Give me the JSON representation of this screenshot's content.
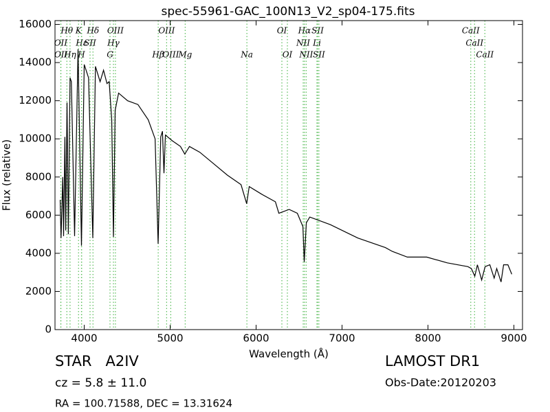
{
  "chart_data": {
    "type": "line",
    "title": "spec-55961-GAC_100N13_V2_sp04-175.fits",
    "x_label": "Wavelength (Å)",
    "y_label": "Flux (relative)",
    "xlim": [
      3660,
      9100
    ],
    "ylim": [
      0,
      16200
    ],
    "xticks": [
      4000,
      5000,
      6000,
      7000,
      8000,
      9000
    ],
    "yticks": [
      0,
      2000,
      4000,
      6000,
      8000,
      10000,
      12000,
      14000,
      16000
    ],
    "color": "#000000",
    "line_color": "#55bb55",
    "x": [
      3720,
      3730,
      3750,
      3760,
      3775,
      3785,
      3800,
      3815,
      3835,
      3850,
      3888,
      3928,
      3968,
      4000,
      4050,
      4100,
      4130,
      4185,
      4225,
      4265,
      4290,
      4320,
      4340,
      4360,
      4400,
      4505,
      4625,
      4745,
      4825,
      4860,
      4890,
      4910,
      4928,
      4945,
      5025,
      5120,
      5170,
      5225,
      5345,
      5505,
      5665,
      5825,
      5890,
      5920,
      6065,
      6225,
      6265,
      6385,
      6480,
      6545,
      6560,
      6585,
      6625,
      6865,
      7185,
      7505,
      7585,
      7760,
      7985,
      8225,
      8465,
      8505,
      8545,
      8575,
      8625,
      8665,
      8720,
      8770,
      8800,
      8850,
      8880,
      8930,
      8975
    ],
    "values": [
      6800,
      4800,
      8000,
      4900,
      10100,
      5200,
      11900,
      5000,
      13200,
      13000,
      4900,
      14700,
      4400,
      13900,
      13200,
      4800,
      13800,
      13000,
      13600,
      12900,
      13000,
      11000,
      4860,
      11500,
      12400,
      12000,
      11800,
      11000,
      10000,
      4500,
      10100,
      10400,
      8200,
      10200,
      9900,
      9600,
      9200,
      9600,
      9300,
      8700,
      8100,
      7600,
      6600,
      7500,
      7100,
      6700,
      6100,
      6300,
      6100,
      5400,
      3550,
      5600,
      5900,
      5500,
      4800,
      4300,
      4100,
      3800,
      3800,
      3500,
      3300,
      3200,
      2800,
      3400,
      2600,
      3300,
      3400,
      2700,
      3200,
      2500,
      3400,
      3400,
      2900
    ],
    "line_rows": [
      [
        {
          "label": "Hθ",
          "x": 3798
        },
        {
          "label": "K",
          "x": 3934
        },
        {
          "label": "Hδ",
          "x": 4102
        },
        {
          "label": "OIII",
          "x": 4363
        },
        {
          "label": "OIII",
          "x": 4959
        },
        {
          "label": "OI",
          "x": 6300
        },
        {
          "label": "Hα",
          "x": 6563
        },
        {
          "label": "SII",
          "x": 6716
        },
        {
          "label": "CaII",
          "x": 8498
        }
      ],
      [
        {
          "label": "OII",
          "x": 3727
        },
        {
          "label": "Hε",
          "x": 3970
        },
        {
          "label": "SII",
          "x": 4068
        },
        {
          "label": "Hγ",
          "x": 4340
        },
        {
          "label": "NII",
          "x": 6548
        },
        {
          "label": "Li",
          "x": 6708
        },
        {
          "label": "CaII",
          "x": 8542
        }
      ],
      [
        {
          "label": "OII",
          "x": 3729
        },
        {
          "label": "Hη",
          "x": 3835
        },
        {
          "label": "H",
          "x": 3968
        },
        {
          "label": "G",
          "x": 4300
        },
        {
          "label": "Hβ",
          "x": 4861
        },
        {
          "label": "OIII",
          "x": 5007
        },
        {
          "label": "Mg",
          "x": 5175
        },
        {
          "label": "Na",
          "x": 5893
        },
        {
          "label": "OI",
          "x": 6364
        },
        {
          "label": "NII",
          "x": 6583
        },
        {
          "label": "SII",
          "x": 6731
        },
        {
          "label": "CaII",
          "x": 8662
        }
      ]
    ],
    "footer": {
      "class": "STAR   A2IV",
      "survey": "LAMOST DR1",
      "cz": "cz = 5.8 ± 11.0",
      "obs_date": "Obs-Date:20120203",
      "coords": "RA = 100.71588, DEC = 13.31624"
    }
  }
}
